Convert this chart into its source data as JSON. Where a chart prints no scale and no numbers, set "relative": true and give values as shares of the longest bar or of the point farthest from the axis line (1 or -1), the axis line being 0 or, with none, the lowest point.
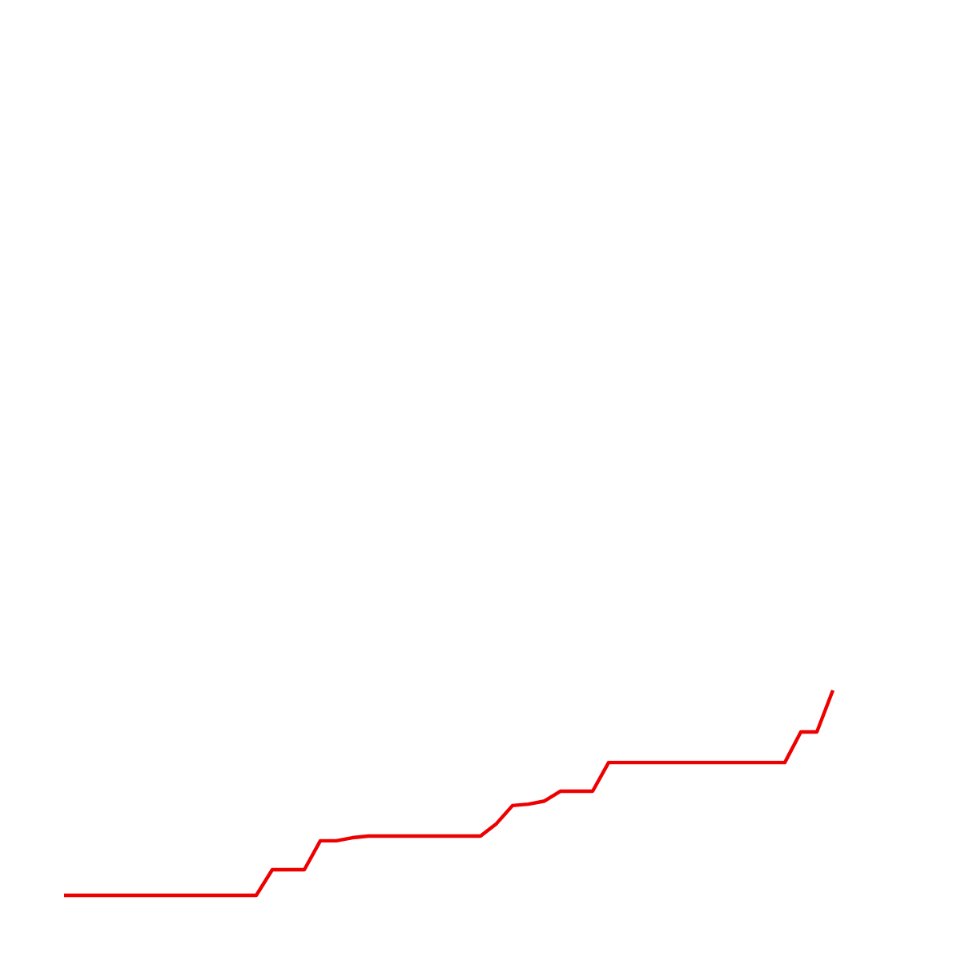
{
  "chart_data": {
    "type": "line",
    "relative": true,
    "color": "#ee0000",
    "categories": [
      null,
      null,
      null,
      null,
      null,
      null,
      null,
      null,
      null,
      null,
      null,
      null,
      null,
      null,
      null,
      null,
      null,
      null,
      null,
      null,
      null,
      null,
      null,
      null,
      null,
      null,
      null,
      null,
      null,
      null,
      null,
      null,
      null,
      null,
      null,
      null,
      null,
      null,
      null,
      null,
      null,
      null,
      null,
      null,
      null,
      null,
      null,
      null,
      null
    ],
    "values": [
      0,
      0,
      0,
      0,
      0,
      0,
      0,
      0,
      0,
      0,
      0,
      0,
      0,
      0.125,
      0.125,
      0.125,
      0.266,
      0.266,
      0.281,
      0.289,
      0.289,
      0.289,
      0.289,
      0.289,
      0.289,
      0.289,
      0.289,
      0.35,
      0.438,
      0.445,
      0.46,
      0.508,
      0.508,
      0.508,
      0.648,
      0.648,
      0.648,
      0.648,
      0.648,
      0.648,
      0.648,
      0.648,
      0.648,
      0.648,
      0.648,
      0.648,
      0.797,
      0.797,
      1
    ]
  }
}
